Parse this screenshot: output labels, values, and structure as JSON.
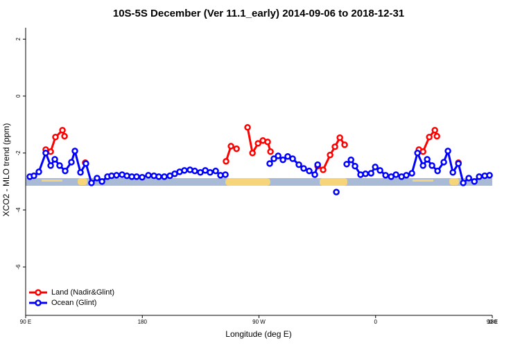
{
  "chart_data": {
    "type": "line",
    "title": "10S-5S December (Ver 11.1_early)   2014-09-06 to 2018-12-31",
    "x_label": "Longitude (deg E)",
    "y_label": "XCO2 - MLO trend (ppm)",
    "xlim": [
      90,
      450
    ],
    "xticks": [
      {
        "value": 90,
        "label": "90 E"
      },
      180,
      {
        "value": 270,
        "label": "90 W"
      },
      {
        "value": 360,
        "label": "0"
      },
      {
        "value": 450,
        "label": "90 E"
      },
      {
        "value": 540,
        "label": "180"
      }
    ],
    "ylim": [
      -7.7,
      2.4
    ],
    "yticks": [
      2,
      0,
      -2,
      -4,
      -6
    ],
    "legend": "bottom-left",
    "series": [
      {
        "name": "Land (Nadir&Glint)",
        "color": "#ff0000",
        "x": [
          105.5,
          109.3,
          113,
          118.4,
          120,
          null,
          136,
          null,
          244.6,
          248.4,
          252.7,
          null,
          261.2,
          265,
          269.3,
          273,
          276.7,
          278.9,
          null,
          315.3,
          319.5,
          324.9,
          328.6,
          332.4,
          336.1,
          null,
          393.4,
          396.6,
          401.4,
          405.7,
          407.3,
          null,
          423.9
        ],
        "values": [
          -1.88,
          -1.95,
          -1.44,
          -1.2,
          -1.41,
          null,
          -2.34,
          null,
          -2.29,
          -1.76,
          -1.85,
          null,
          -1.1,
          -2.0,
          -1.66,
          -1.56,
          -1.61,
          -1.95,
          null,
          -2.46,
          -2.59,
          -2.07,
          -1.78,
          -1.46,
          -1.71,
          null,
          -1.88,
          -1.95,
          -1.44,
          -1.2,
          -1.41,
          null,
          -2.34
        ]
      },
      {
        "name": "Ocean (Glint)",
        "color": "#0000ff",
        "x": [
          93.2,
          96.4,
          100.2,
          105.5,
          109.3,
          112.5,
          116.2,
          120.5,
          125.3,
          128,
          132.3,
          136.5,
          140.8,
          145.1,
          148.9,
          153.1,
          156.3,
          160.1,
          164.4,
          168.1,
          171.9,
          175.6,
          179.9,
          184.7,
          189,
          192.7,
          197,
          201.3,
          205,
          208.8,
          212.5,
          216.8,
          220.5,
          224.8,
          228.6,
          232.3,
          236.6,
          240.3,
          244.1,
          null,
          278.3,
          281.5,
          284.8,
          288.5,
          292.2,
          296,
          300.8,
          304.5,
          308.8,
          313.1,
          315.3,
          null,
          329.7,
          null,
          337.7,
          341,
          344.1,
          348.4,
          352.2,
          356.5,
          359.7,
          363.4,
          367.7,
          372,
          375.7,
          380,
          383.7,
          388,
          392.3,
          396.6,
          399.8,
          403.5,
          407.8,
          412.6,
          415.8,
          419.6,
          423.9,
          427.6,
          431.9,
          436.2,
          439.9,
          444.2,
          447.9
        ],
        "values": [
          -2.83,
          -2.8,
          -2.66,
          -2.0,
          -2.44,
          -2.22,
          -2.44,
          -2.63,
          -2.32,
          -1.93,
          -2.68,
          -2.37,
          -3.05,
          -2.88,
          -3.0,
          -2.83,
          -2.8,
          -2.78,
          -2.76,
          -2.8,
          -2.83,
          -2.83,
          -2.85,
          -2.78,
          -2.8,
          -2.83,
          -2.83,
          -2.8,
          -2.73,
          -2.66,
          -2.61,
          -2.59,
          -2.63,
          -2.68,
          -2.61,
          -2.68,
          -2.63,
          -2.78,
          -2.76,
          null,
          -2.37,
          -2.2,
          -2.1,
          -2.24,
          -2.12,
          -2.2,
          -2.41,
          -2.54,
          -2.63,
          -2.76,
          -2.41,
          null,
          -3.37,
          null,
          -2.39,
          -2.24,
          -2.46,
          -2.76,
          -2.73,
          -2.71,
          -2.49,
          -2.61,
          -2.78,
          -2.83,
          -2.76,
          -2.83,
          -2.78,
          -2.71,
          -2.0,
          -2.44,
          -2.22,
          -2.44,
          -2.63,
          -2.32,
          -1.93,
          -2.68,
          -2.37,
          -3.05,
          -2.88,
          -3.0,
          -2.83,
          -2.8,
          -2.78
        ]
      }
    ]
  }
}
